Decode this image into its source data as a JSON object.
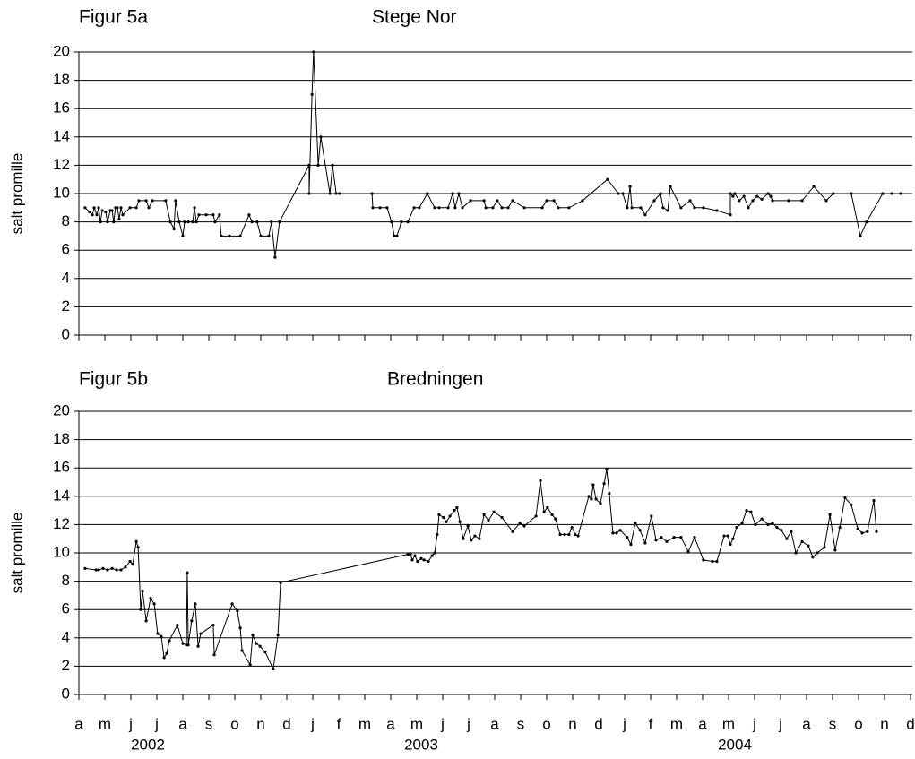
{
  "chart_data": [
    {
      "type": "line",
      "figure_label": "Figur 5a",
      "title": "Stege Nor",
      "ylabel": "salt promille",
      "ylim": [
        0,
        20
      ],
      "yticks": [
        0,
        2,
        4,
        6,
        8,
        10,
        12,
        14,
        16,
        18,
        20
      ],
      "grid": true,
      "xlim": [
        0,
        32.07
      ],
      "xticks": [
        0,
        1,
        2,
        3,
        4,
        5,
        6,
        7,
        8,
        9,
        10,
        11,
        12,
        13,
        14,
        15,
        16,
        17,
        18,
        19,
        20,
        21,
        22,
        23,
        24,
        25,
        26,
        27,
        28,
        29,
        30,
        31,
        32
      ],
      "color": "#000000",
      "x": [
        0.24,
        0.41,
        0.52,
        0.59,
        0.69,
        0.76,
        0.83,
        0.9,
        1.03,
        1.1,
        1.21,
        1.28,
        1.34,
        1.41,
        1.48,
        1.55,
        1.62,
        1.69,
        1.97,
        2.21,
        2.31,
        2.59,
        2.69,
        2.83,
        3.34,
        3.52,
        3.66,
        3.72,
        3.86,
        4.0,
        4.07,
        4.21,
        4.38,
        4.45,
        4.52,
        4.62,
        4.9,
        5.17,
        5.24,
        5.41,
        5.48,
        5.79,
        6.21,
        6.55,
        6.66,
        6.86,
        7.0,
        7.31,
        7.41,
        7.55,
        7.72,
        8.86,
        8.86,
        8.97,
        9.03,
        9.21,
        9.31,
        9.66,
        9.76,
        9.9,
        10.03,
        11.28,
        11.31,
        11.59,
        11.86,
        12.03,
        12.14,
        12.24,
        12.41,
        12.66,
        12.9,
        13.1,
        13.41,
        13.69,
        13.86,
        14.21,
        14.38,
        14.48,
        14.62,
        14.76,
        15.07,
        15.59,
        15.66,
        15.93,
        16.1,
        16.28,
        16.52,
        16.69,
        17.14,
        17.83,
        18.0,
        18.28,
        18.45,
        18.86,
        19.38,
        20.34,
        20.76,
        20.93,
        21.1,
        21.21,
        21.28,
        21.62,
        21.79,
        22.14,
        22.38,
        22.48,
        22.66,
        22.76,
        23.17,
        23.52,
        23.69,
        24.03,
        24.55,
        25.07,
        25.07,
        25.17,
        25.24,
        25.41,
        25.59,
        25.76,
        25.93,
        26.1,
        26.28,
        26.52,
        26.62,
        26.69,
        27.31,
        27.83,
        28.28,
        28.76,
        29.03,
        29.72,
        30.07,
        30.31,
        30.93,
        31.28,
        31.62
      ],
      "values": [
        9,
        8.7,
        8.5,
        9,
        8.5,
        9,
        8,
        8.8,
        8.7,
        8,
        8.8,
        8.8,
        8,
        9,
        9,
        8.2,
        9,
        8.5,
        9,
        9,
        9.5,
        9.5,
        9,
        9.5,
        9.5,
        8,
        7.5,
        9.5,
        8,
        7,
        8,
        8,
        8,
        9,
        8,
        8.5,
        8.5,
        8.5,
        8,
        8.5,
        7,
        7,
        7,
        8.5,
        8,
        8,
        7,
        7,
        8,
        5.5,
        8,
        12,
        10,
        17,
        20,
        12,
        14,
        10,
        12,
        10,
        10,
        10,
        9,
        9,
        9,
        8,
        7,
        7,
        8,
        8,
        9,
        9,
        10,
        9,
        9,
        9,
        10,
        9,
        10,
        9,
        9.5,
        9.5,
        9,
        9,
        9.5,
        9,
        9,
        9.5,
        9,
        9,
        9.5,
        9.5,
        9,
        9,
        9.5,
        11,
        10,
        10,
        9,
        10.5,
        9,
        9,
        8.5,
        9.5,
        10,
        9,
        8.8,
        10.5,
        9,
        9.5,
        9,
        9,
        8.8,
        8.5,
        10,
        9.8,
        10,
        9.5,
        9.8,
        9,
        9.5,
        9.8,
        9.6,
        10,
        9.8,
        9.5,
        9.5,
        9.5,
        10.5,
        9.5,
        10,
        10,
        7,
        8,
        10,
        10,
        10
      ]
    },
    {
      "type": "line",
      "figure_label": "Figur 5b",
      "title": "Bredningen",
      "ylabel": "salt promille",
      "ylim": [
        0,
        20
      ],
      "yticks": [
        0,
        2,
        4,
        6,
        8,
        10,
        12,
        14,
        16,
        18,
        20
      ],
      "grid": true,
      "xlim": [
        0,
        32.07
      ],
      "xticks": [
        {
          "value": 0,
          "label": "a"
        },
        {
          "value": 1,
          "label": "m"
        },
        {
          "value": 2,
          "label": "j"
        },
        {
          "value": 3,
          "label": "j"
        },
        {
          "value": 4,
          "label": "a"
        },
        {
          "value": 5,
          "label": "s"
        },
        {
          "value": 6,
          "label": "o"
        },
        {
          "value": 7,
          "label": "n"
        },
        {
          "value": 8,
          "label": "d"
        },
        {
          "value": 9,
          "label": "j"
        },
        {
          "value": 10,
          "label": "f"
        },
        {
          "value": 11,
          "label": "m"
        },
        {
          "value": 12,
          "label": "a"
        },
        {
          "value": 13,
          "label": "m"
        },
        {
          "value": 14,
          "label": "j"
        },
        {
          "value": 15,
          "label": "j"
        },
        {
          "value": 16,
          "label": "a"
        },
        {
          "value": 17,
          "label": "s"
        },
        {
          "value": 18,
          "label": "o"
        },
        {
          "value": 19,
          "label": "n"
        },
        {
          "value": 20,
          "label": "d"
        },
        {
          "value": 21,
          "label": "j"
        },
        {
          "value": 22,
          "label": "f"
        },
        {
          "value": 23,
          "label": "m"
        },
        {
          "value": 24,
          "label": "a"
        },
        {
          "value": 25,
          "label": "m"
        },
        {
          "value": 26,
          "label": "j"
        },
        {
          "value": 27,
          "label": "j"
        },
        {
          "value": 28,
          "label": "a"
        },
        {
          "value": 29,
          "label": "s"
        },
        {
          "value": 30,
          "label": "o"
        },
        {
          "value": 31,
          "label": "n"
        },
        {
          "value": 32,
          "label": "d"
        }
      ],
      "year_labels": [
        "2002",
        "2003",
        "2004"
      ],
      "color": "#000000",
      "x": [
        0.24,
        0.66,
        0.76,
        0.93,
        1.1,
        1.28,
        1.45,
        1.62,
        1.79,
        1.97,
        2.07,
        2.21,
        2.28,
        2.38,
        2.45,
        2.59,
        2.76,
        2.9,
        3.03,
        3.17,
        3.28,
        3.38,
        3.48,
        3.79,
        4.0,
        4.14,
        4.17,
        4.21,
        4.34,
        4.48,
        4.59,
        4.69,
        5.17,
        5.21,
        5.9,
        6.1,
        6.21,
        6.28,
        6.59,
        6.69,
        6.83,
        6.97,
        7.17,
        7.48,
        7.66,
        7.76,
        12.66,
        12.76,
        12.83,
        12.93,
        13.03,
        13.17,
        13.28,
        13.45,
        13.59,
        13.69,
        13.79,
        13.86,
        14.03,
        14.14,
        14.28,
        14.45,
        14.55,
        14.66,
        14.79,
        14.97,
        15.1,
        15.24,
        15.41,
        15.59,
        15.76,
        15.97,
        16.28,
        16.69,
        16.97,
        17.14,
        17.59,
        17.76,
        17.9,
        18.03,
        18.21,
        18.34,
        18.52,
        18.69,
        18.86,
        18.97,
        19.1,
        19.21,
        19.62,
        19.72,
        19.79,
        19.9,
        20.07,
        20.21,
        20.31,
        20.41,
        20.55,
        20.69,
        20.83,
        21.1,
        21.24,
        21.41,
        21.59,
        21.79,
        22.03,
        22.21,
        22.41,
        22.62,
        22.9,
        23.17,
        23.45,
        23.69,
        24.03,
        24.38,
        24.55,
        24.83,
        24.97,
        25.07,
        25.17,
        25.31,
        25.52,
        25.69,
        25.86,
        26.03,
        26.28,
        26.52,
        26.69,
        26.86,
        27.03,
        27.24,
        27.41,
        27.59,
        27.83,
        28.07,
        28.24,
        28.41,
        28.69,
        28.9,
        29.1,
        29.28,
        29.48,
        29.72,
        29.97,
        30.14,
        30.34,
        30.59,
        30.69
      ],
      "values": [
        8.9,
        8.8,
        8.8,
        8.9,
        8.8,
        8.9,
        8.8,
        8.8,
        9,
        9.4,
        9.2,
        10.8,
        10.4,
        6,
        7.3,
        5.2,
        6.8,
        6.4,
        4.3,
        4.1,
        2.6,
        2.9,
        3.8,
        4.9,
        3.6,
        3.5,
        8.6,
        3.5,
        5.2,
        6.4,
        3.4,
        4.3,
        4.9,
        2.8,
        6.4,
        5.9,
        4.7,
        3.1,
        2.1,
        4.2,
        3.6,
        3.4,
        3,
        1.8,
        4.2,
        7.9,
        9.9,
        9.9,
        9.5,
        9.8,
        9.4,
        9.6,
        9.5,
        9.4,
        9.8,
        10,
        11.3,
        12.7,
        12.5,
        12.2,
        12.6,
        13,
        13.2,
        12.2,
        11,
        11.9,
        10.9,
        11.2,
        11,
        12.7,
        12.3,
        12.9,
        12.5,
        11.5,
        12.1,
        11.9,
        12.6,
        15.1,
        12.9,
        13.2,
        12.7,
        12.4,
        11.3,
        11.3,
        11.3,
        11.8,
        11.3,
        11.2,
        14,
        13.8,
        14.8,
        13.8,
        13.5,
        14.9,
        15.9,
        14.2,
        11.4,
        11.4,
        11.6,
        11.1,
        10.6,
        12.1,
        11.6,
        10.7,
        12.6,
        10.9,
        11.1,
        10.8,
        11.1,
        11.1,
        10.1,
        11.1,
        9.5,
        9.4,
        9.4,
        11.2,
        11.2,
        10.6,
        11,
        11.8,
        12.1,
        13,
        12.9,
        12,
        12.4,
        12,
        12.1,
        11.8,
        11.6,
        11,
        11.5,
        10,
        10.8,
        10.5,
        9.7,
        10,
        10.4,
        12.7,
        10.2,
        11.8,
        13.9,
        13.4,
        11.7,
        11.4,
        11.5,
        13.7,
        11.5
      ]
    }
  ]
}
